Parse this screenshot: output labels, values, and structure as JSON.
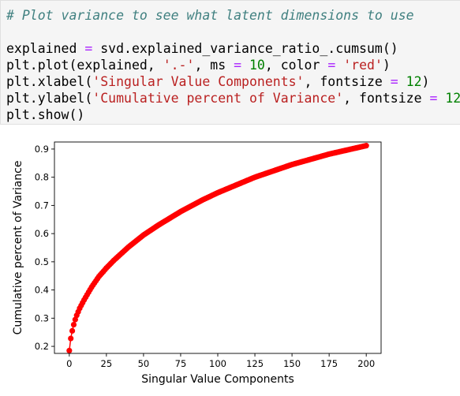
{
  "code_cell": {
    "comment": "# Plot variance to see what latent dimensions to use",
    "line2": {
      "var": "explained",
      "eq": " = ",
      "rest": "svd.explained_variance_ratio_.cumsum()"
    },
    "line3": {
      "p1": "plt.plot(explained, ",
      "s1": "'.-'",
      "p2": ", ms ",
      "eq1": "=",
      "p3": " ",
      "n1": "10",
      "p4": ", color ",
      "eq2": "=",
      "p5": " ",
      "s2": "'red'",
      "p6": ")"
    },
    "line4": {
      "p1": "plt.xlabel(",
      "s1": "'Singular Value Components'",
      "p2": ", fontsize ",
      "eq": "=",
      "p3": " ",
      "n1": "12",
      "p4": ")"
    },
    "line5": {
      "p1": "plt.ylabel(",
      "s1": "'Cumulative percent of Variance'",
      "p2": ", fontsize ",
      "eq": "=",
      "p3": " ",
      "n1": "12",
      "p4": ")"
    },
    "line6": "plt.show()"
  },
  "chart_data": {
    "type": "line",
    "xlabel": "Singular Value Components",
    "ylabel": "Cumulative percent of Variance",
    "xlim": [
      -10,
      210
    ],
    "ylim": [
      0.175,
      0.925
    ],
    "xticks": [
      0,
      25,
      50,
      75,
      100,
      125,
      150,
      175,
      200
    ],
    "yticks": [
      0.2,
      0.3,
      0.4,
      0.5,
      0.6,
      0.7,
      0.8,
      0.9
    ],
    "grid": false,
    "marker": "circle",
    "color": "#ff0000",
    "series": [
      {
        "x": [
          0,
          1,
          2,
          3,
          4,
          5,
          7,
          10,
          15,
          20,
          25,
          30,
          40,
          50,
          60,
          75,
          90,
          100,
          125,
          150,
          175,
          200
        ],
        "values": [
          0.185,
          0.228,
          0.255,
          0.277,
          0.295,
          0.31,
          0.335,
          0.365,
          0.41,
          0.448,
          0.478,
          0.505,
          0.553,
          0.595,
          0.63,
          0.678,
          0.72,
          0.745,
          0.8,
          0.845,
          0.882,
          0.912
        ]
      }
    ]
  }
}
